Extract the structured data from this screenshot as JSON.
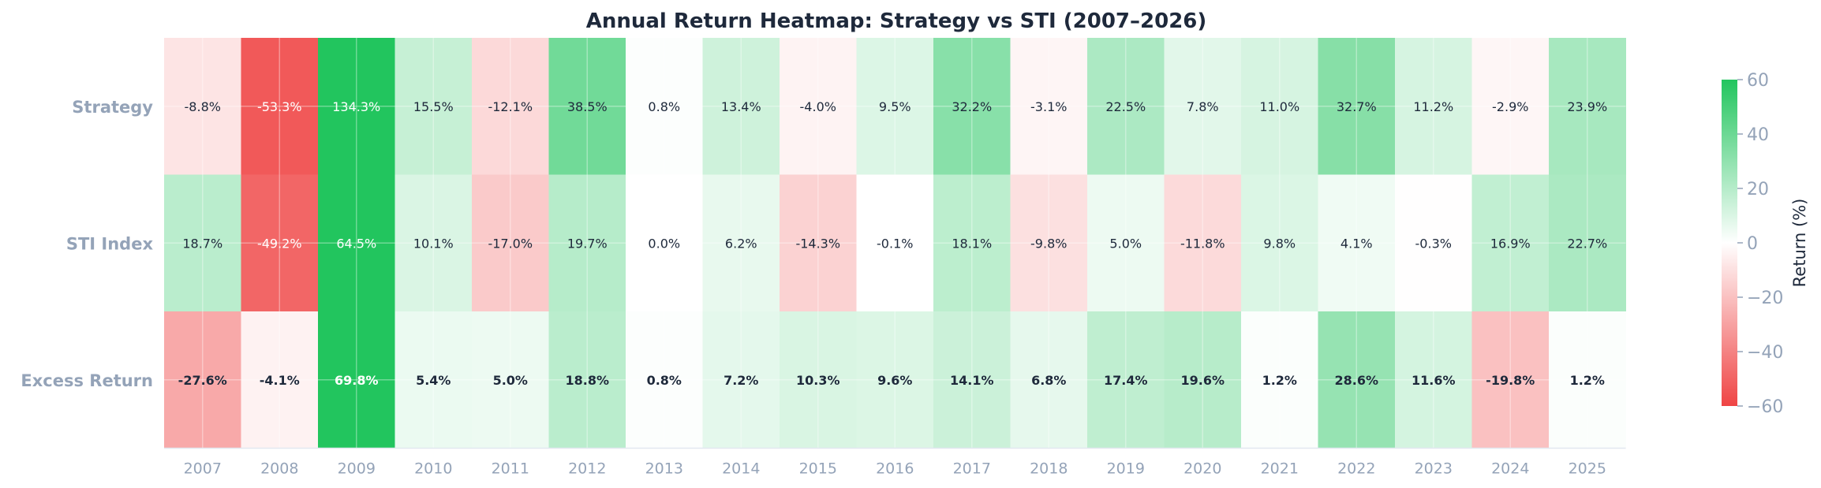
{
  "chart_data": {
    "type": "heatmap",
    "title": "Annual Return Heatmap: Strategy vs STI (2007–2026)",
    "x_categories": [
      "2007",
      "2008",
      "2009",
      "2010",
      "2011",
      "2012",
      "2013",
      "2014",
      "2015",
      "2016",
      "2017",
      "2018",
      "2019",
      "2020",
      "2021",
      "2022",
      "2023",
      "2024",
      "2025"
    ],
    "rows": [
      {
        "name": "Strategy",
        "values": [
          -8.8,
          -53.3,
          134.3,
          15.5,
          -12.1,
          38.5,
          0.8,
          13.4,
          -4.0,
          9.5,
          32.2,
          -3.1,
          22.5,
          7.8,
          11.0,
          32.7,
          11.2,
          -2.9,
          23.9
        ]
      },
      {
        "name": "STI Index",
        "values": [
          18.7,
          -49.2,
          64.5,
          10.1,
          -17.0,
          19.7,
          0.0,
          6.2,
          -14.3,
          -0.1,
          18.1,
          -9.8,
          5.0,
          -11.8,
          9.8,
          4.1,
          -0.3,
          16.9,
          22.7
        ]
      },
      {
        "name": "Excess Return",
        "values": [
          -27.6,
          -4.1,
          69.8,
          5.4,
          5.0,
          18.8,
          0.8,
          7.2,
          10.3,
          9.6,
          14.1,
          6.8,
          17.4,
          19.6,
          1.2,
          28.6,
          11.6,
          -19.8,
          1.2
        ]
      }
    ],
    "value_format_suffix": "%",
    "bold_rows": [
      "Excess Return"
    ],
    "colorbar": {
      "label": "Return (%)",
      "range": [
        -60,
        60
      ],
      "ticks": [
        60,
        40,
        20,
        0,
        -20,
        -40,
        -60
      ],
      "colors": {
        "negative": "#ef4444",
        "zero": "#ffffff",
        "positive": "#22c55e"
      }
    },
    "grid": true
  }
}
